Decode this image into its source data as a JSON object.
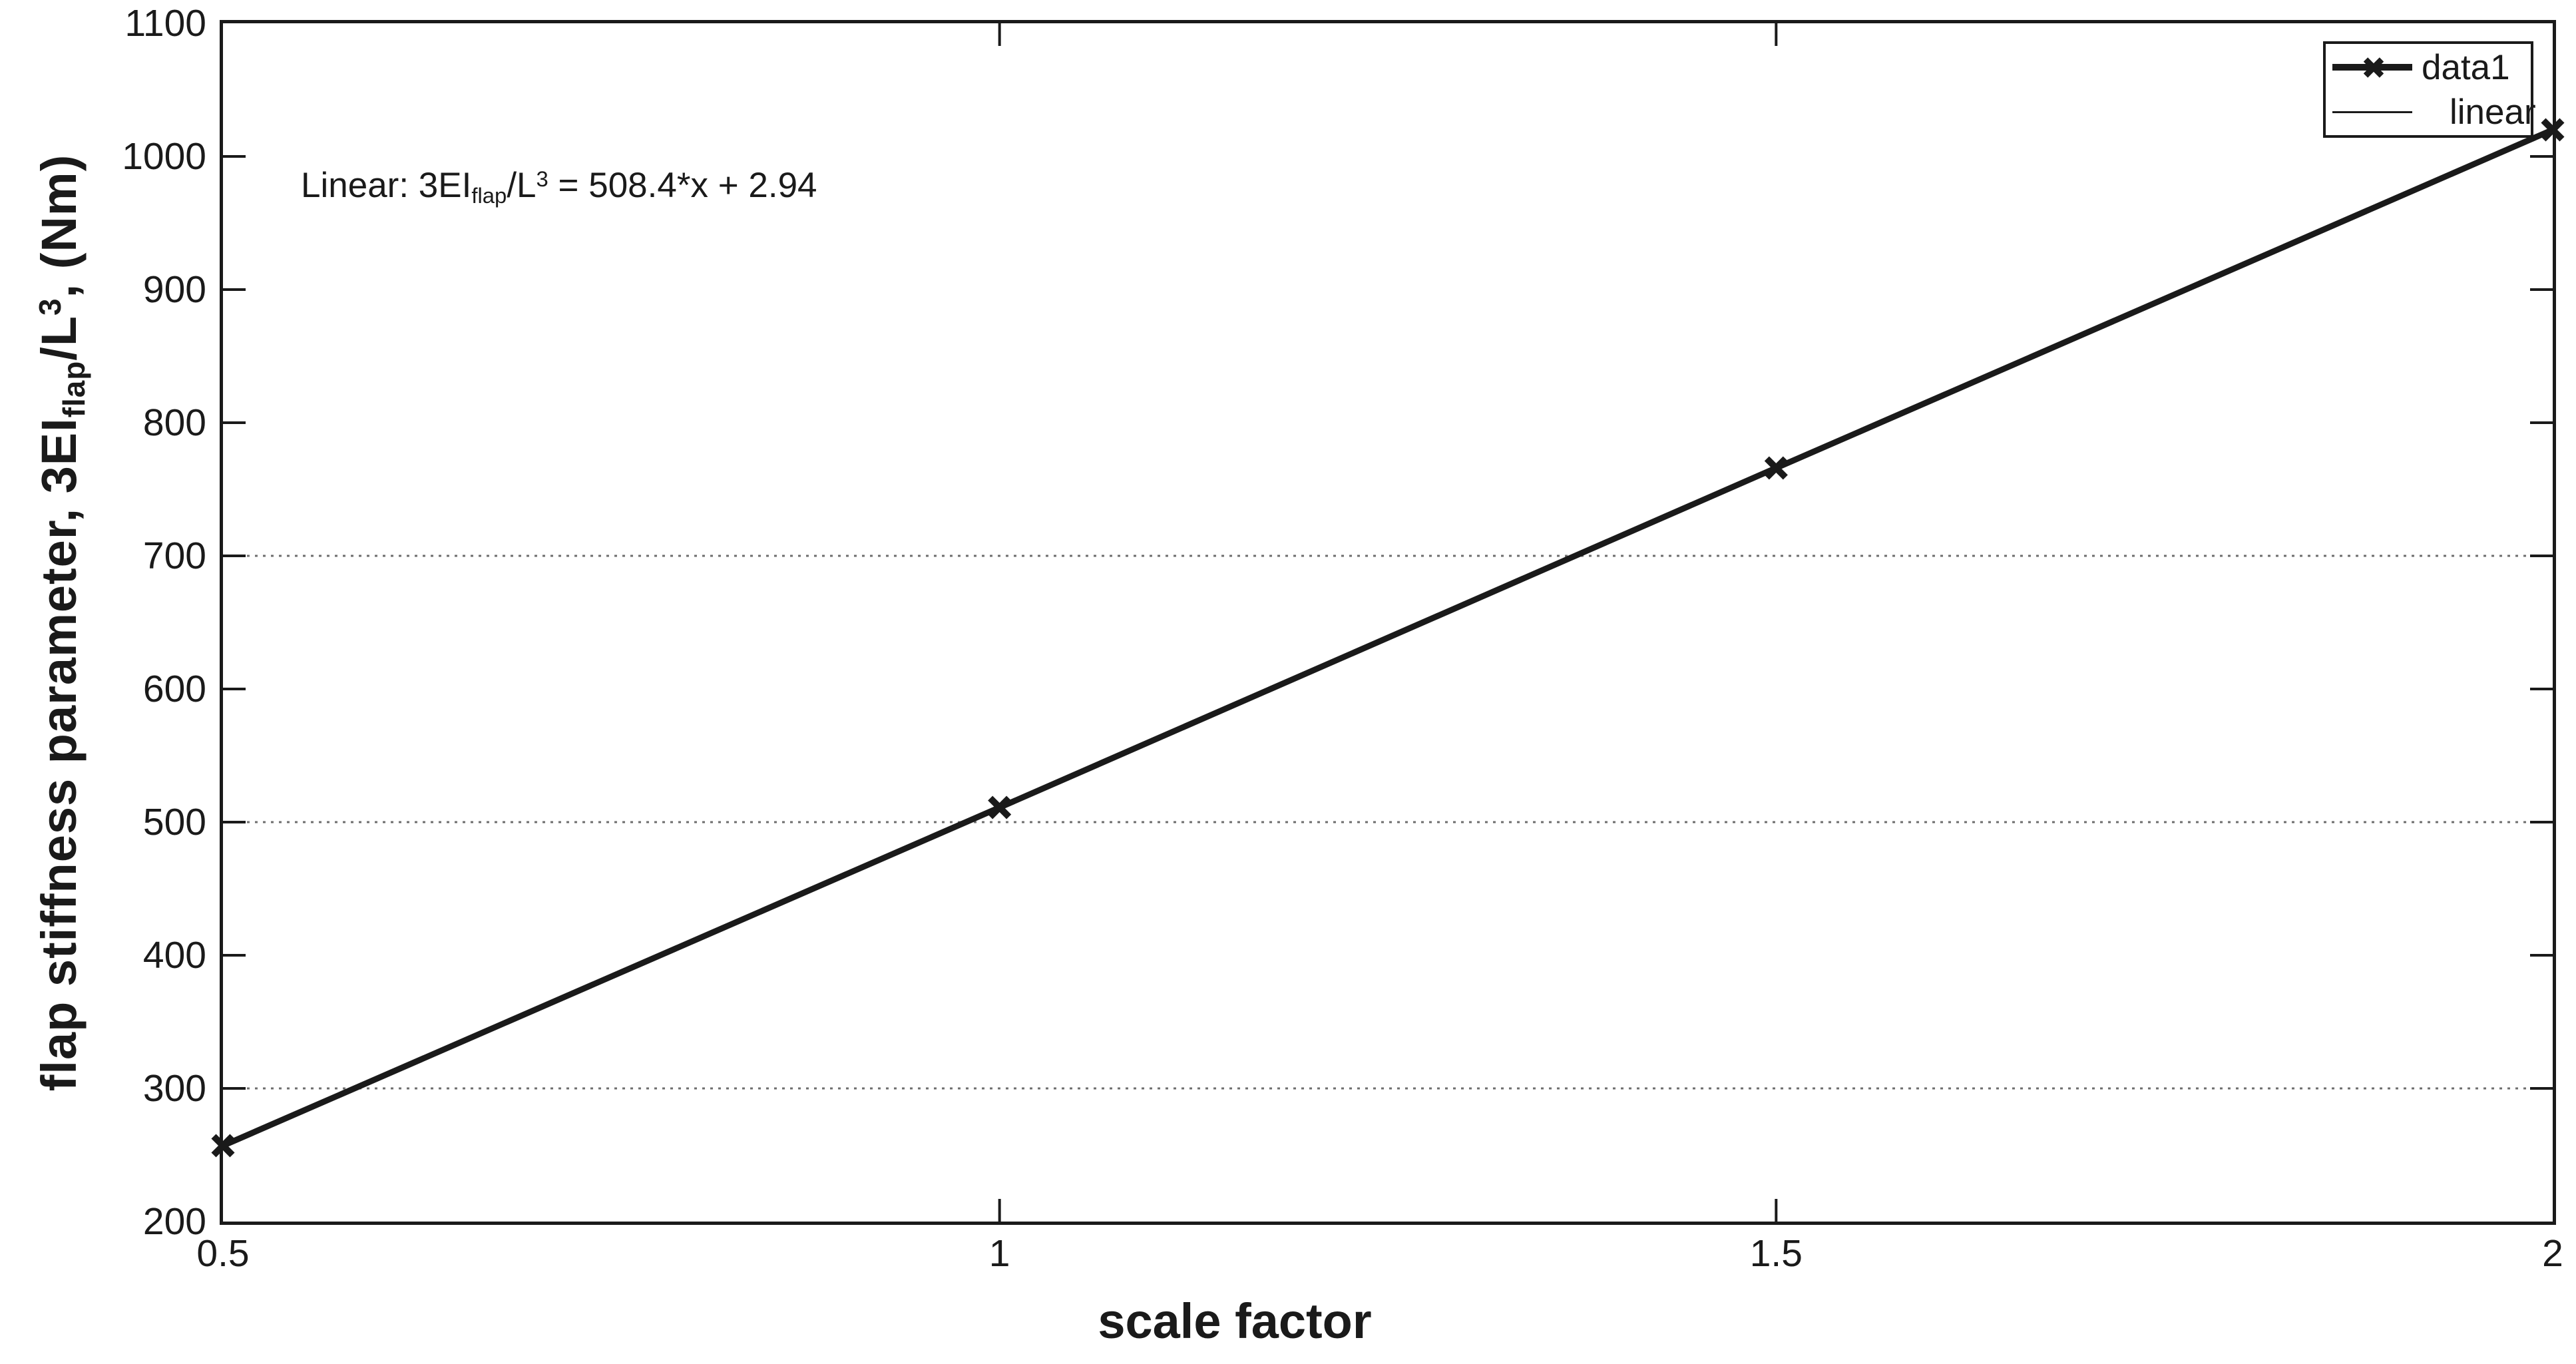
{
  "figure": {
    "background": "#ffffff",
    "ink_color": "#1a1a1a",
    "grid_color": "#6e6e6e"
  },
  "axes": {
    "xlabel": "scale factor",
    "ylabel_full": "flap stiffness parameter, 3EI_flap/L^3, (Nm)",
    "ylabel_parts": {
      "p1": "flap stiffness parameter, 3EI",
      "sub": "flap",
      "p2": "/L",
      "sup": "3",
      "p3": ", (Nm)"
    }
  },
  "annotation": {
    "full_text": "Linear: 3EI_flap/L^3 = 508.4*x + 2.94",
    "p1": "Linear: 3EI",
    "sub": "flap",
    "p2": "/L",
    "sup": "3",
    "p3": " = 508.4*x + 2.94"
  },
  "legend": {
    "position": "top-right",
    "entries": [
      {
        "label": "data1",
        "sample": "thick-line-with-x-marker"
      },
      {
        "label": "linear",
        "sample": "thin-line"
      }
    ]
  },
  "chart_data": {
    "type": "line",
    "title": "",
    "xlabel": "scale factor",
    "ylabel": "flap stiffness parameter, 3EI_flap/L^3, (Nm)",
    "xlim": [
      0.5,
      2
    ],
    "ylim": [
      200,
      1100
    ],
    "x_ticks": [
      0.5,
      1,
      1.5,
      2
    ],
    "x_tick_labels": [
      "0.5",
      "1",
      "1.5",
      "2"
    ],
    "y_ticks": [
      200,
      300,
      400,
      500,
      600,
      700,
      800,
      900,
      1000,
      1100
    ],
    "y_tick_labels": [
      "200",
      "300",
      "400",
      "500",
      "600",
      "700",
      "800",
      "900",
      "1000",
      "1100"
    ],
    "y_gridlines": [
      300,
      500,
      700
    ],
    "grid_style": "dotted horizontal lines at 300, 500, 700 only; no vertical gridlines",
    "legend_position": "top-right",
    "annotation": "Linear: 3EI_flap/L^3 = 508.4*x + 2.94",
    "series": [
      {
        "name": "data1",
        "type": "line+marker",
        "marker": "x",
        "line_width": "thick",
        "x": [
          0.5,
          1,
          1.5,
          2
        ],
        "y": [
          257,
          511,
          766,
          1020
        ]
      },
      {
        "name": "linear",
        "type": "fit-line",
        "line_width": "thin",
        "slope": 508.4,
        "intercept": 2.94
      }
    ]
  }
}
